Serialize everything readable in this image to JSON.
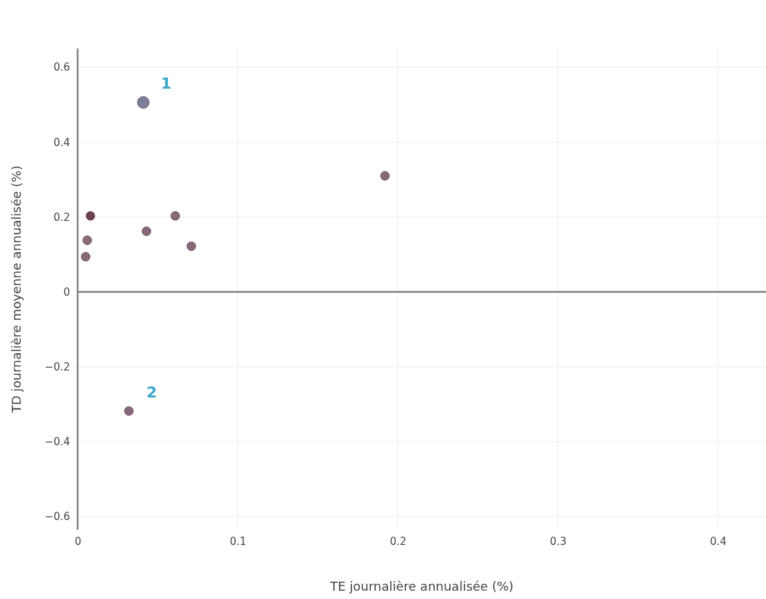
{
  "chart_data": {
    "type": "bubble",
    "xlabel": "TE journalière annualisée (%)",
    "ylabel": "TD journalière moyenne annualisée (%)",
    "x": [
      0.041,
      0.192,
      0.008,
      0.061,
      0.006,
      0.043,
      0.071,
      0.005,
      0.032
    ],
    "values": [
      0.506,
      0.31,
      0.203,
      0.203,
      0.138,
      0.162,
      0.122,
      0.094,
      -0.318
    ],
    "sizes": [
      1,
      0.56,
      0.56,
      0.56,
      0.56,
      0.56,
      0.56,
      0.56,
      0.56
    ],
    "colors": [
      "#7a7f9e",
      "#86687a",
      "#6e3f50",
      "#86687a",
      "#8a6a78",
      "#86687a",
      "#86687a",
      "#8a6a78",
      "#86687a"
    ],
    "xlim": [
      0,
      0.43
    ],
    "xticks": [
      0,
      0.1,
      0.2,
      0.3,
      0.4
    ],
    "ylim": [
      -0.635,
      0.65
    ],
    "yticks": [
      -0.6,
      -0.4,
      -0.2,
      0,
      0.2,
      0.4,
      0.6
    ],
    "grid": true,
    "ref_lines": [
      {
        "axis": "y",
        "value": 0,
        "color": "#808080"
      }
    ],
    "annotations": [
      {
        "text": "1",
        "x": 0.041,
        "y": 0.506
      },
      {
        "text": "2",
        "x": 0.032,
        "y": -0.318
      }
    ]
  }
}
